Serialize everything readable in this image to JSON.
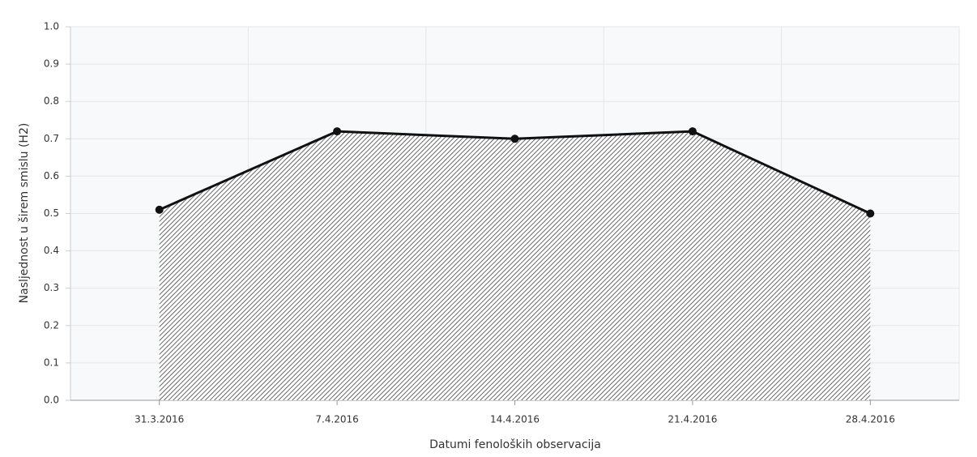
{
  "chart_data": {
    "type": "area",
    "categories": [
      "31.3.2016",
      "7.4.2016",
      "14.4.2016",
      "21.4.2016",
      "28.4.2016"
    ],
    "values": [
      0.51,
      0.72,
      0.7,
      0.72,
      0.5
    ],
    "color": "#111111",
    "x_label": "Datumi fenoloških observacija",
    "y_label": "Nasljednost u širem smislu (H2)",
    "ylim": [
      0,
      1
    ],
    "yticks": [
      {
        "value": 0,
        "label": "0.0"
      },
      0.1,
      0.2,
      0.3,
      0.4,
      0.5,
      0.6,
      0.7,
      0.8,
      0.9,
      {
        "value": 1,
        "label": "1.0"
      }
    ],
    "grid": true
  }
}
